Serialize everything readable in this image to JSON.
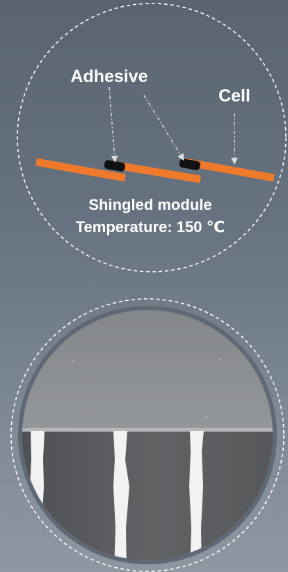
{
  "schematic": {
    "labels": {
      "adhesive": "Adhesive",
      "cell": "Cell",
      "module": "Shingled module",
      "temperature": "Temperature: 150 ℃"
    },
    "colors": {
      "cell": "#f07a2c",
      "adhesive": "#111111",
      "outline": "#ffffff",
      "arrow": "#dcdcdc"
    }
  },
  "photo": {
    "colors": {
      "upper_region": "#8c8f91",
      "lower_region": "#5a5c5f",
      "busbar": "#f2f2f2",
      "ring": "#5f6975"
    }
  }
}
